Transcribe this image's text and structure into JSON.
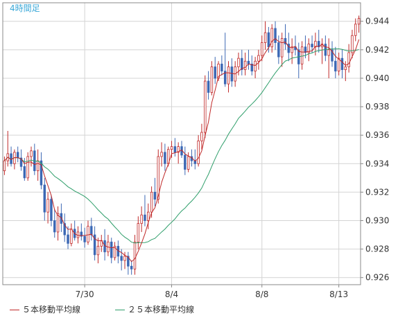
{
  "chart_data": {
    "type": "candlestick",
    "title": "4時間足",
    "y_ticks": [
      "0.926",
      "0.928",
      "0.930",
      "0.932",
      "0.934",
      "0.936",
      "0.938",
      "0.940",
      "0.942",
      "0.944"
    ],
    "ylim": [
      0.9255,
      0.9453
    ],
    "x_tick_labels": [
      {
        "label": "7/30",
        "index": 24
      },
      {
        "label": "8/4",
        "index": 50
      },
      {
        "label": "8/8",
        "index": 77
      },
      {
        "label": "8/13",
        "index": 100
      }
    ],
    "grid": true,
    "legend_position": "bottom",
    "up_color": "#c02828",
    "down_color": "#3c68b4",
    "candles": [
      [
        0.9335,
        0.9345,
        0.9332,
        0.9342
      ],
      [
        0.9342,
        0.9363,
        0.9338,
        0.9347
      ],
      [
        0.9347,
        0.9352,
        0.9338,
        0.934
      ],
      [
        0.934,
        0.935,
        0.9336,
        0.9348
      ],
      [
        0.9348,
        0.9352,
        0.9341,
        0.9344
      ],
      [
        0.9344,
        0.935,
        0.9335,
        0.9338
      ],
      [
        0.9338,
        0.9344,
        0.9328,
        0.933
      ],
      [
        0.933,
        0.9348,
        0.9328,
        0.9345
      ],
      [
        0.9345,
        0.9352,
        0.9338,
        0.9349
      ],
      [
        0.9349,
        0.9354,
        0.9332,
        0.9335
      ],
      [
        0.9335,
        0.935,
        0.9328,
        0.9342
      ],
      [
        0.9342,
        0.9348,
        0.9322,
        0.9325
      ],
      [
        0.9325,
        0.933,
        0.93,
        0.9306
      ],
      [
        0.9306,
        0.932,
        0.9298,
        0.9315
      ],
      [
        0.9315,
        0.9318,
        0.9296,
        0.93
      ],
      [
        0.93,
        0.9308,
        0.9288,
        0.9292
      ],
      [
        0.9292,
        0.931,
        0.9286,
        0.9305
      ],
      [
        0.9305,
        0.9312,
        0.9292,
        0.9298
      ],
      [
        0.9298,
        0.9305,
        0.9285,
        0.929
      ],
      [
        0.929,
        0.9296,
        0.928,
        0.9284
      ],
      [
        0.9284,
        0.9298,
        0.9282,
        0.9294
      ],
      [
        0.9294,
        0.93,
        0.9286,
        0.9288
      ],
      [
        0.9288,
        0.9296,
        0.9284,
        0.9292
      ],
      [
        0.9292,
        0.9298,
        0.9286,
        0.9289
      ],
      [
        0.9289,
        0.9295,
        0.9281,
        0.9285
      ],
      [
        0.9285,
        0.93,
        0.9283,
        0.9296
      ],
      [
        0.9296,
        0.9302,
        0.9286,
        0.929
      ],
      [
        0.929,
        0.9296,
        0.9272,
        0.9276
      ],
      [
        0.9276,
        0.9288,
        0.927,
        0.9282
      ],
      [
        0.9282,
        0.929,
        0.9278,
        0.9286
      ],
      [
        0.9286,
        0.9294,
        0.9272,
        0.9278
      ],
      [
        0.9278,
        0.929,
        0.9275,
        0.9285
      ],
      [
        0.9285,
        0.9288,
        0.927,
        0.9274
      ],
      [
        0.9274,
        0.9285,
        0.9272,
        0.9282
      ],
      [
        0.9282,
        0.9286,
        0.927,
        0.9275
      ],
      [
        0.9275,
        0.928,
        0.9265,
        0.9272
      ],
      [
        0.9272,
        0.9278,
        0.9266,
        0.9275
      ],
      [
        0.9275,
        0.9278,
        0.9262,
        0.9268
      ],
      [
        0.9268,
        0.9272,
        0.9262,
        0.9266
      ],
      [
        0.9266,
        0.929,
        0.9262,
        0.9285
      ],
      [
        0.9285,
        0.9303,
        0.928,
        0.9298
      ],
      [
        0.9298,
        0.931,
        0.9292,
        0.9304
      ],
      [
        0.9304,
        0.9318,
        0.9296,
        0.93
      ],
      [
        0.93,
        0.9312,
        0.9294,
        0.9306
      ],
      [
        0.9306,
        0.9324,
        0.9302,
        0.932
      ],
      [
        0.932,
        0.933,
        0.931,
        0.9315
      ],
      [
        0.9315,
        0.935,
        0.9312,
        0.9345
      ],
      [
        0.9345,
        0.9355,
        0.9338,
        0.9348
      ],
      [
        0.9348,
        0.9354,
        0.9335,
        0.934
      ],
      [
        0.934,
        0.9352,
        0.9338,
        0.935
      ],
      [
        0.935,
        0.9356,
        0.9344,
        0.9352
      ],
      [
        0.9352,
        0.9358,
        0.9345,
        0.9348
      ],
      [
        0.9348,
        0.9355,
        0.934,
        0.9352
      ],
      [
        0.9352,
        0.9356,
        0.9344,
        0.9346
      ],
      [
        0.9346,
        0.9352,
        0.9332,
        0.9336
      ],
      [
        0.9336,
        0.9348,
        0.9334,
        0.9345
      ],
      [
        0.9345,
        0.935,
        0.9338,
        0.9342
      ],
      [
        0.9342,
        0.935,
        0.9336,
        0.934
      ],
      [
        0.934,
        0.936,
        0.9338,
        0.9356
      ],
      [
        0.9356,
        0.9368,
        0.935,
        0.9362
      ],
      [
        0.9362,
        0.9402,
        0.9358,
        0.9398
      ],
      [
        0.9398,
        0.9405,
        0.9385,
        0.939
      ],
      [
        0.939,
        0.9412,
        0.9388,
        0.9408
      ],
      [
        0.9408,
        0.9415,
        0.9396,
        0.94
      ],
      [
        0.94,
        0.9412,
        0.9398,
        0.941
      ],
      [
        0.941,
        0.9416,
        0.9402,
        0.9405
      ],
      [
        0.9405,
        0.9432,
        0.9394,
        0.9396
      ],
      [
        0.9396,
        0.9412,
        0.939,
        0.9408
      ],
      [
        0.9408,
        0.9414,
        0.9394,
        0.9398
      ],
      [
        0.9398,
        0.9412,
        0.9394,
        0.9408
      ],
      [
        0.9408,
        0.9418,
        0.9402,
        0.9414
      ],
      [
        0.9414,
        0.942,
        0.9402,
        0.9406
      ],
      [
        0.9406,
        0.9418,
        0.9402,
        0.9412
      ],
      [
        0.9412,
        0.942,
        0.9406,
        0.941
      ],
      [
        0.941,
        0.9416,
        0.9402,
        0.9405
      ],
      [
        0.9405,
        0.9415,
        0.94,
        0.9412
      ],
      [
        0.9412,
        0.942,
        0.9406,
        0.9416
      ],
      [
        0.9416,
        0.943,
        0.9412,
        0.9425
      ],
      [
        0.9425,
        0.944,
        0.942,
        0.9432
      ],
      [
        0.9432,
        0.9436,
        0.9418,
        0.9422
      ],
      [
        0.9422,
        0.9438,
        0.9418,
        0.9435
      ],
      [
        0.9435,
        0.944,
        0.942,
        0.9425
      ],
      [
        0.9425,
        0.943,
        0.941,
        0.9415
      ],
      [
        0.9415,
        0.9432,
        0.9408,
        0.9428
      ],
      [
        0.9428,
        0.9438,
        0.942,
        0.9424
      ],
      [
        0.9424,
        0.9432,
        0.9412,
        0.9418
      ],
      [
        0.9418,
        0.9428,
        0.941,
        0.9422
      ],
      [
        0.9422,
        0.943,
        0.9416,
        0.942
      ],
      [
        0.942,
        0.9425,
        0.94,
        0.941
      ],
      [
        0.941,
        0.9426,
        0.9406,
        0.9422
      ],
      [
        0.9422,
        0.943,
        0.9414,
        0.9418
      ],
      [
        0.9418,
        0.9428,
        0.9412,
        0.9424
      ],
      [
        0.9424,
        0.943,
        0.9418,
        0.9422
      ],
      [
        0.9422,
        0.9432,
        0.9416,
        0.9426
      ],
      [
        0.9426,
        0.9434,
        0.9418,
        0.9422
      ],
      [
        0.9422,
        0.9428,
        0.941,
        0.9424
      ],
      [
        0.9424,
        0.943,
        0.9412,
        0.9416
      ],
      [
        0.9416,
        0.9428,
        0.94,
        0.942
      ],
      [
        0.942,
        0.9426,
        0.9408,
        0.9412
      ],
      [
        0.9412,
        0.9422,
        0.94,
        0.9405
      ],
      [
        0.9405,
        0.9418,
        0.9402,
        0.9414
      ],
      [
        0.9414,
        0.942,
        0.94,
        0.9406
      ],
      [
        0.9406,
        0.9412,
        0.9398,
        0.9408
      ],
      [
        0.9408,
        0.9424,
        0.9404,
        0.9418
      ],
      [
        0.9418,
        0.9434,
        0.9414,
        0.943
      ],
      [
        0.943,
        0.9442,
        0.9426,
        0.9438
      ],
      [
        0.9438,
        0.9444,
        0.9432,
        0.9442
      ]
    ],
    "series": [
      {
        "name": "５本移動平均線",
        "type": "sma",
        "period": 5,
        "color": "#c02828"
      },
      {
        "name": "２５本移動平均線",
        "type": "sma",
        "period": 25,
        "color": "#2e9e6a"
      }
    ]
  },
  "colors": {
    "title_color": "#3aa8d8",
    "grid": "#d4d4d4",
    "frame": "#888888",
    "tick_text": "#333333"
  }
}
